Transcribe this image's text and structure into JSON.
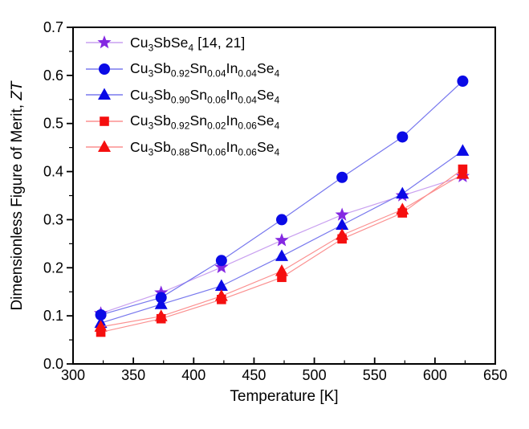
{
  "axes": {
    "x_title": "Temperature [K]",
    "y_title_main": "Dimensionless Figure of Merit, ",
    "y_title_italic": "ZT"
  },
  "colors": {
    "frame": "#000000",
    "background": "#ffffff",
    "purple_marker": "#8428E2",
    "purple_line": "#C9A0F0",
    "blue_marker": "#0A0AE6",
    "blue_line": "#7878EE",
    "red_marker": "#F50F0F",
    "red_line": "#FB9090"
  },
  "chart_data": {
    "type": "scatter",
    "x": [
      323,
      373,
      423,
      473,
      523,
      573,
      623
    ],
    "xlim": [
      300,
      650
    ],
    "ylim": [
      0.0,
      0.7
    ],
    "x_major_ticks": [
      300,
      350,
      400,
      450,
      500,
      550,
      600,
      650
    ],
    "x_tick_labels": [
      "300",
      "350",
      "400",
      "450",
      "500",
      "550",
      "600",
      "650"
    ],
    "x_minor_step": 25,
    "y_major_ticks": [
      0.0,
      0.1,
      0.2,
      0.3,
      0.4,
      0.5,
      0.6,
      0.7
    ],
    "y_tick_labels": [
      "0.0",
      "0.1",
      "0.2",
      "0.3",
      "0.4",
      "0.5",
      "0.6",
      "0.7"
    ],
    "y_minor_step": 0.05,
    "grid": false,
    "legend_position": "top-left",
    "draw_order": [
      0,
      2,
      1,
      4,
      3
    ],
    "series": [
      {
        "name": "Cu3SbSe4 [14, 21]",
        "marker": "star",
        "marker_color": "#8428E2",
        "line_color": "#C9A0F0",
        "values": [
          0.105,
          0.148,
          0.201,
          0.257,
          0.31,
          0.35,
          0.39
        ],
        "label_segments": [
          {
            "t": "Cu"
          },
          {
            "s": "3"
          },
          {
            "t": "SbSe"
          },
          {
            "s": "4"
          },
          {
            "t": " [14, 21]"
          }
        ]
      },
      {
        "name": "Cu3Sb0.92Sn0.04In0.04Se4",
        "marker": "circle",
        "marker_color": "#0A0AE6",
        "line_color": "#7878EE",
        "values": [
          0.102,
          0.138,
          0.215,
          0.3,
          0.388,
          0.472,
          0.588
        ],
        "label_segments": [
          {
            "t": "Cu"
          },
          {
            "s": "3"
          },
          {
            "t": "Sb"
          },
          {
            "s": "0.92"
          },
          {
            "t": "Sn"
          },
          {
            "s": "0.04"
          },
          {
            "t": "In"
          },
          {
            "s": "0.04"
          },
          {
            "t": "Se"
          },
          {
            "s": "4"
          }
        ]
      },
      {
        "name": "Cu3Sb0.90Sn0.06In0.04Se4",
        "marker": "triangle",
        "marker_color": "#0A0AE6",
        "line_color": "#7878EE",
        "values": [
          0.085,
          0.124,
          0.162,
          0.224,
          0.289,
          0.354,
          0.443
        ],
        "label_segments": [
          {
            "t": "Cu"
          },
          {
            "s": "3"
          },
          {
            "t": "Sb"
          },
          {
            "s": "0.90"
          },
          {
            "t": "Sn"
          },
          {
            "s": "0.06"
          },
          {
            "t": "In"
          },
          {
            "s": "0.04"
          },
          {
            "t": "Se"
          },
          {
            "s": "4"
          }
        ]
      },
      {
        "name": "Cu3Sb0.92Sn0.02In0.06Se4",
        "marker": "square",
        "marker_color": "#F50F0F",
        "line_color": "#FB9090",
        "values": [
          0.066,
          0.094,
          0.134,
          0.18,
          0.26,
          0.314,
          0.405
        ],
        "label_segments": [
          {
            "t": "Cu"
          },
          {
            "s": "3"
          },
          {
            "t": "Sb"
          },
          {
            "s": "0.92"
          },
          {
            "t": "Sn"
          },
          {
            "s": "0.02"
          },
          {
            "t": "In"
          },
          {
            "s": "0.06"
          },
          {
            "t": "Se"
          },
          {
            "s": "4"
          }
        ]
      },
      {
        "name": "Cu3Sb0.88Sn0.06In0.06Se4",
        "marker": "triangle",
        "marker_color": "#F50F0F",
        "line_color": "#FB9090",
        "values": [
          0.077,
          0.099,
          0.141,
          0.193,
          0.268,
          0.321,
          0.395
        ],
        "label_segments": [
          {
            "t": "Cu"
          },
          {
            "s": "3"
          },
          {
            "t": "Sb"
          },
          {
            "s": "0.88"
          },
          {
            "t": "Sn"
          },
          {
            "s": "0.06"
          },
          {
            "t": "In"
          },
          {
            "s": "0.06"
          },
          {
            "t": "Se"
          },
          {
            "s": "4"
          }
        ]
      }
    ]
  }
}
